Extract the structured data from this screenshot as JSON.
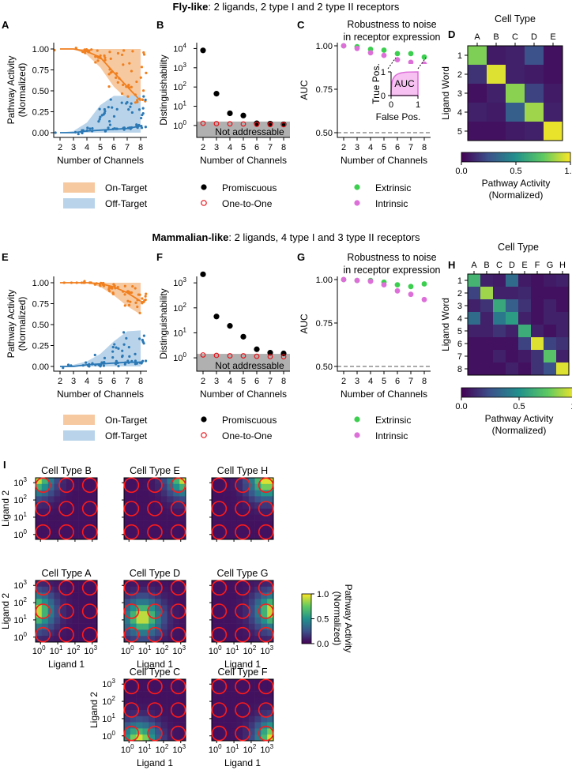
{
  "figure": {
    "fly_title_bold": "Fly-like",
    "fly_title_rest": ": 2 ligands, 2 type I and 2 type II receptors",
    "mam_title_bold": "Mammalian-like",
    "mam_title_rest": ": 2 ligands, 4 type I and 3 type II receptors"
  },
  "legend": {
    "on_target": "On-Target",
    "off_target": "Off-Target",
    "promiscuous": "Promiscuous",
    "one_to_one": "One-to-One",
    "extrinsic": "Extrinsic",
    "intrinsic": "Intrinsic"
  },
  "colors": {
    "orange": "#f07f1e",
    "blue": "#2b78b5",
    "green": "#3ccf4f",
    "magenta": "#dd6fd9",
    "red": "#e8141a",
    "grey": "#b0b0b0"
  },
  "chart_data": [
    {
      "panel": "A",
      "type": "scatter",
      "xlabel": "Number of Channels",
      "ylabel": "Pathway Activity (Normalized)",
      "ylabel_line1": "Pathway Activity",
      "ylabel_line2": "(Normalized)",
      "x_ticks": [
        "2",
        "3",
        "4",
        "5",
        "6",
        "7",
        "8"
      ],
      "y_ticks": [
        "0.00",
        "0.25",
        "0.50",
        "0.75",
        "1.00"
      ],
      "ylim": [
        0,
        1
      ],
      "on_target": {
        "x": [
          2,
          3,
          4,
          5,
          6,
          7,
          8
        ],
        "median": [
          1.0,
          1.0,
          0.97,
          0.9,
          0.72,
          0.55,
          0.38
        ],
        "low": [
          1.0,
          1.0,
          0.93,
          0.78,
          0.55,
          0.4,
          0.22
        ],
        "high": [
          1.0,
          1.0,
          1.0,
          1.0,
          1.0,
          1.0,
          1.0
        ]
      },
      "off_target": {
        "x": [
          2,
          3,
          4,
          5,
          6,
          7,
          8
        ],
        "median": [
          0.0,
          0.0,
          0.02,
          0.03,
          0.04,
          0.05,
          0.08
        ],
        "low": [
          0,
          0,
          0,
          0,
          0,
          0,
          0
        ],
        "high": [
          0.0,
          0.02,
          0.12,
          0.33,
          0.44,
          0.44,
          0.45
        ]
      }
    },
    {
      "panel": "B",
      "type": "scatter",
      "xlabel": "Number of Channels",
      "ylabel": "Distinguishability",
      "x_ticks": [
        "2",
        "3",
        "4",
        "5",
        "6",
        "7",
        "8"
      ],
      "y_tick_exponents": [
        "0",
        "1",
        "2",
        "3",
        "4"
      ],
      "annotation": "Not addressable",
      "promiscuous": {
        "x": [
          2,
          3,
          4,
          5,
          6,
          7,
          8
        ],
        "y": [
          8000,
          45,
          4.3,
          3.3,
          1.3,
          1.25,
          1.15
        ]
      },
      "one_to_one": {
        "x": [
          2,
          3,
          4,
          5,
          6,
          7,
          8
        ],
        "y": [
          1.3,
          1.25,
          1.22,
          1.2,
          1.15,
          1.12,
          1.1
        ]
      }
    },
    {
      "panel": "C",
      "type": "scatter",
      "title_line1": "Robustness to noise",
      "title_line2": "in receptor expression",
      "xlabel": "Number of Channels",
      "ylabel": "AUC",
      "x_ticks": [
        "2",
        "3",
        "4",
        "5",
        "6",
        "7",
        "8"
      ],
      "y_ticks": [
        "0.50",
        "0.75",
        "1.00"
      ],
      "ylim": [
        0.5,
        1.0
      ],
      "extrinsic": {
        "x": [
          2,
          3,
          4,
          5,
          6,
          7,
          8
        ],
        "y": [
          1.0,
          0.995,
          0.98,
          0.975,
          0.955,
          0.955,
          0.935
        ]
      },
      "intrinsic": {
        "x": [
          2,
          3,
          4,
          5,
          6,
          7,
          8
        ],
        "y": [
          1.0,
          0.985,
          0.96,
          0.945,
          0.92,
          0.905,
          0.895
        ]
      },
      "inset": {
        "xlabel": "False Pos.",
        "ylabel": "True Pos.",
        "label": "AUC",
        "ticks_x": [
          "0",
          "1"
        ],
        "ticks_y": [
          "0",
          "1"
        ]
      }
    },
    {
      "panel": "D",
      "type": "heatmap",
      "title": "Cell Type",
      "ylabel": "Ligand Word",
      "columns": [
        "A",
        "B",
        "C",
        "D",
        "E"
      ],
      "rows": [
        "1",
        "2",
        "3",
        "4",
        "5"
      ],
      "values": [
        [
          0.8,
          0.08,
          0.1,
          0.25,
          0.05
        ],
        [
          0.15,
          0.95,
          0.1,
          0.08,
          0.05
        ],
        [
          0.05,
          0.1,
          0.82,
          0.2,
          0.08
        ],
        [
          0.1,
          0.08,
          0.3,
          0.85,
          0.1
        ],
        [
          0.05,
          0.05,
          0.08,
          0.1,
          0.97
        ]
      ],
      "colorbar": {
        "ticks": [
          "0.0",
          "0.5",
          "1.0"
        ],
        "label_line1": "Pathway Activity",
        "label_line2": "(Normalized)"
      }
    },
    {
      "panel": "E",
      "type": "scatter",
      "xlabel": "Number of Channels",
      "ylabel": "Pathway Activity (Normalized)",
      "ylabel_line1": "Pathway Activity",
      "ylabel_line2": "(Normalized)",
      "x_ticks": [
        "2",
        "3",
        "4",
        "5",
        "6",
        "7",
        "8"
      ],
      "y_ticks": [
        "0.00",
        "0.25",
        "0.50",
        "0.75",
        "1.00"
      ],
      "ylim": [
        0,
        1
      ],
      "on_target": {
        "x": [
          2,
          3,
          4,
          5,
          6,
          7,
          8
        ],
        "median": [
          1.0,
          1.0,
          1.0,
          0.99,
          0.95,
          0.88,
          0.78
        ],
        "low": [
          1.0,
          1.0,
          1.0,
          0.95,
          0.85,
          0.72,
          0.62
        ],
        "high": [
          1.0,
          1.0,
          1.0,
          1.0,
          1.0,
          1.0,
          1.0
        ]
      },
      "off_target": {
        "x": [
          2,
          3,
          4,
          5,
          6,
          7,
          8
        ],
        "median": [
          0.0,
          0.0,
          0.02,
          0.03,
          0.04,
          0.05,
          0.05
        ],
        "low": [
          0,
          0,
          0,
          0,
          0,
          0,
          0
        ],
        "high": [
          0.0,
          0.02,
          0.06,
          0.15,
          0.3,
          0.42,
          0.43
        ]
      }
    },
    {
      "panel": "F",
      "type": "scatter",
      "xlabel": "Number of Channels",
      "ylabel": "Distinguishability",
      "x_ticks": [
        "2",
        "3",
        "4",
        "5",
        "6",
        "7",
        "8"
      ],
      "y_tick_exponents": [
        "0",
        "1",
        "2",
        "3"
      ],
      "annotation": "Not addressable",
      "promiscuous": {
        "x": [
          2,
          3,
          4,
          5,
          6,
          7,
          8
        ],
        "y": [
          2200,
          45,
          19,
          7,
          2.2,
          1.6,
          1.5
        ]
      },
      "one_to_one": {
        "x": [
          2,
          3,
          4,
          5,
          6,
          7,
          8
        ],
        "y": [
          1.3,
          1.25,
          1.2,
          1.2,
          1.15,
          1.12,
          1.1
        ]
      }
    },
    {
      "panel": "G",
      "type": "scatter",
      "title_line1": "Robustness to noise",
      "title_line2": "in receptor expression",
      "xlabel": "Number of Channels",
      "ylabel": "AUC",
      "x_ticks": [
        "2",
        "3",
        "4",
        "5",
        "6",
        "7",
        "8"
      ],
      "y_ticks": [
        "0.50",
        "0.75",
        "1.00"
      ],
      "ylim": [
        0.5,
        1.0
      ],
      "extrinsic": {
        "x": [
          2,
          3,
          4,
          5,
          6,
          7,
          8
        ],
        "y": [
          1.0,
          0.995,
          0.995,
          0.985,
          0.97,
          0.96,
          0.975
        ]
      },
      "intrinsic": {
        "x": [
          2,
          3,
          4,
          5,
          6,
          7,
          8
        ],
        "y": [
          1.0,
          0.995,
          0.99,
          0.97,
          0.935,
          0.915,
          0.885
        ]
      }
    },
    {
      "panel": "H",
      "type": "heatmap",
      "title": "Cell Type",
      "ylabel": "Ligand Word",
      "columns": [
        "A",
        "B",
        "C",
        "D",
        "E",
        "F",
        "G",
        "H"
      ],
      "rows": [
        "1",
        "2",
        "3",
        "4",
        "5",
        "6",
        "7",
        "8"
      ],
      "values": [
        [
          0.65,
          0.1,
          0.08,
          0.35,
          0.08,
          0.05,
          0.08,
          0.1
        ],
        [
          0.2,
          0.85,
          0.1,
          0.1,
          0.12,
          0.05,
          0.05,
          0.05
        ],
        [
          0.1,
          0.15,
          0.6,
          0.3,
          0.15,
          0.05,
          0.1,
          0.05
        ],
        [
          0.35,
          0.1,
          0.4,
          0.55,
          0.1,
          0.05,
          0.1,
          0.1
        ],
        [
          0.1,
          0.1,
          0.15,
          0.1,
          0.62,
          0.1,
          0.05,
          0.1
        ],
        [
          0.05,
          0.05,
          0.05,
          0.05,
          0.2,
          0.95,
          0.2,
          0.15
        ],
        [
          0.05,
          0.05,
          0.1,
          0.05,
          0.08,
          0.15,
          0.72,
          0.1
        ],
        [
          0.05,
          0.05,
          0.05,
          0.1,
          0.05,
          0.15,
          0.25,
          0.95
        ]
      ],
      "colorbar": {
        "ticks": [
          "0.0",
          "0.5",
          "1.0"
        ],
        "label_line1": "Pathway Activity",
        "label_line2": "(Normalized)"
      }
    },
    {
      "panel": "I",
      "type": "heatmap",
      "xlabel": "Ligand 1",
      "ylabel": "Ligand 2",
      "tick_exponents": [
        "0",
        "1",
        "2",
        "3"
      ],
      "colorbar": {
        "ticks": [
          "0.0",
          "0.5",
          "1.0"
        ],
        "label_line1": "Pathway Activity",
        "label_line2": "(Normalized)"
      },
      "cell_types": [
        {
          "title": "Cell Type B",
          "peak": [
            0.0,
            1.0
          ]
        },
        {
          "title": "Cell Type E",
          "peak": [
            1.0,
            1.0
          ]
        },
        {
          "title": "Cell Type H",
          "peak": [
            0.9,
            0.95
          ]
        },
        {
          "title": "Cell Type A",
          "peak": [
            0.0,
            0.5
          ]
        },
        {
          "title": "Cell Type D",
          "peak": [
            0.3,
            0.4
          ]
        },
        {
          "title": "Cell Type G",
          "peak": [
            1.0,
            0.5
          ]
        },
        {
          "title": "Cell Type C",
          "peak": [
            0.25,
            0.0
          ]
        },
        {
          "title": "Cell Type F",
          "peak": [
            1.0,
            0.05
          ]
        }
      ]
    }
  ]
}
